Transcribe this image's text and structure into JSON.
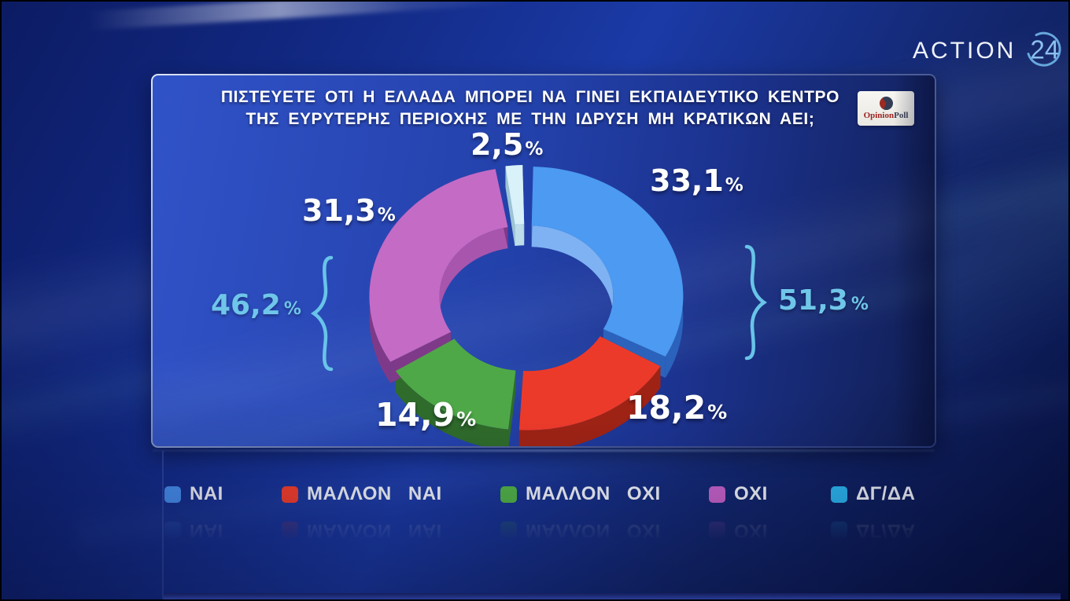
{
  "channel": {
    "name": "ACTION",
    "number": "24"
  },
  "poll_brand": {
    "icon": "pie-chart-icon",
    "part1": "Opinion",
    "part2": "Poll"
  },
  "question": {
    "line1": "ΠΙΣΤΕΥΕΤΕ ΟΤΙ Η ΕΛΛΑΔΑ ΜΠΟΡΕΙ ΝΑ ΓΙΝΕΙ ΕΚΠΑΙΔΕΥΤΙΚΟ ΚΕΝΤΡΟ",
    "line2": "ΤΗΣ ΕΥΡΥΤΕΡΗΣ ΠΕΡΙΟΧΗΣ ΜΕ ΤΗΝ ΙΔΡΥΣΗ ΜΗ ΚΡΑΤΙΚΩΝ ΑΕΙ;"
  },
  "chart_data": {
    "type": "pie",
    "subtype": "3d-donut",
    "title": "ΠΙΣΤΕΥΕΤΕ ΟΤΙ Η ΕΛΛΑΔΑ ΜΠΟΡΕΙ ΝΑ ΓΙΝΕΙ ΕΚΠΑΙΔΕΥΤΙΚΟ ΚΕΝΤΡΟ ΤΗΣ ΕΥΡΥΤΕΡΗΣ ΠΕΡΙΟΧΗΣ ΜΕ ΤΗΝ ΙΔΡΥΣΗ ΜΗ ΚΡΑΤΙΚΩΝ ΑΕΙ;",
    "unit": "percent",
    "percent_suffix": "%",
    "decimal_separator": ",",
    "legend_position": "bottom",
    "segments": [
      {
        "label": "ΝΑΙ",
        "value": 33.1,
        "display": "33,1",
        "color": "#4C9AF1",
        "side_color": "#2B62BB",
        "inner_color": "#7FB2F2",
        "legend_color": "#478FF0"
      },
      {
        "label": "ΜΑΛΛΟΝ ΝΑΙ",
        "value": 18.2,
        "display": "18,2",
        "color": "#EC3A2A",
        "side_color": "#9E2315",
        "inner_color": "#C33021",
        "legend_color": "#F4402E"
      },
      {
        "label": "ΜΑΛΛΟΝ ΟΧΙ",
        "value": 14.9,
        "display": "14,9",
        "color": "#4FA847",
        "side_color": "#2F6B2B",
        "inner_color": "#3F8C39",
        "legend_color": "#52B348"
      },
      {
        "label": "ΟΧΙ",
        "value": 31.3,
        "display": "31,3",
        "color": "#C46BC6",
        "side_color": "#7E3A88",
        "inner_color": "#A855AE",
        "legend_color": "#C763CB"
      },
      {
        "label": "ΔΓ/ΔΑ",
        "value": 2.5,
        "display": "2,5",
        "color": "#D9F1F9",
        "side_color": "#9CC4D4",
        "inner_color": "#BCDDE9",
        "legend_color": "#2CB8F4"
      }
    ],
    "aggregates": [
      {
        "label": "ΝΑΙ + ΜΑΛΛΟΝ ΝΑΙ",
        "value": 51.3,
        "display": "51,3",
        "side": "right",
        "color": "#6FC6E9"
      },
      {
        "label": "ΟΧΙ + ΜΑΛΛΟΝ ΟΧΙ",
        "value": 46.2,
        "display": "46,2",
        "side": "left",
        "color": "#6FC6E9"
      }
    ]
  }
}
